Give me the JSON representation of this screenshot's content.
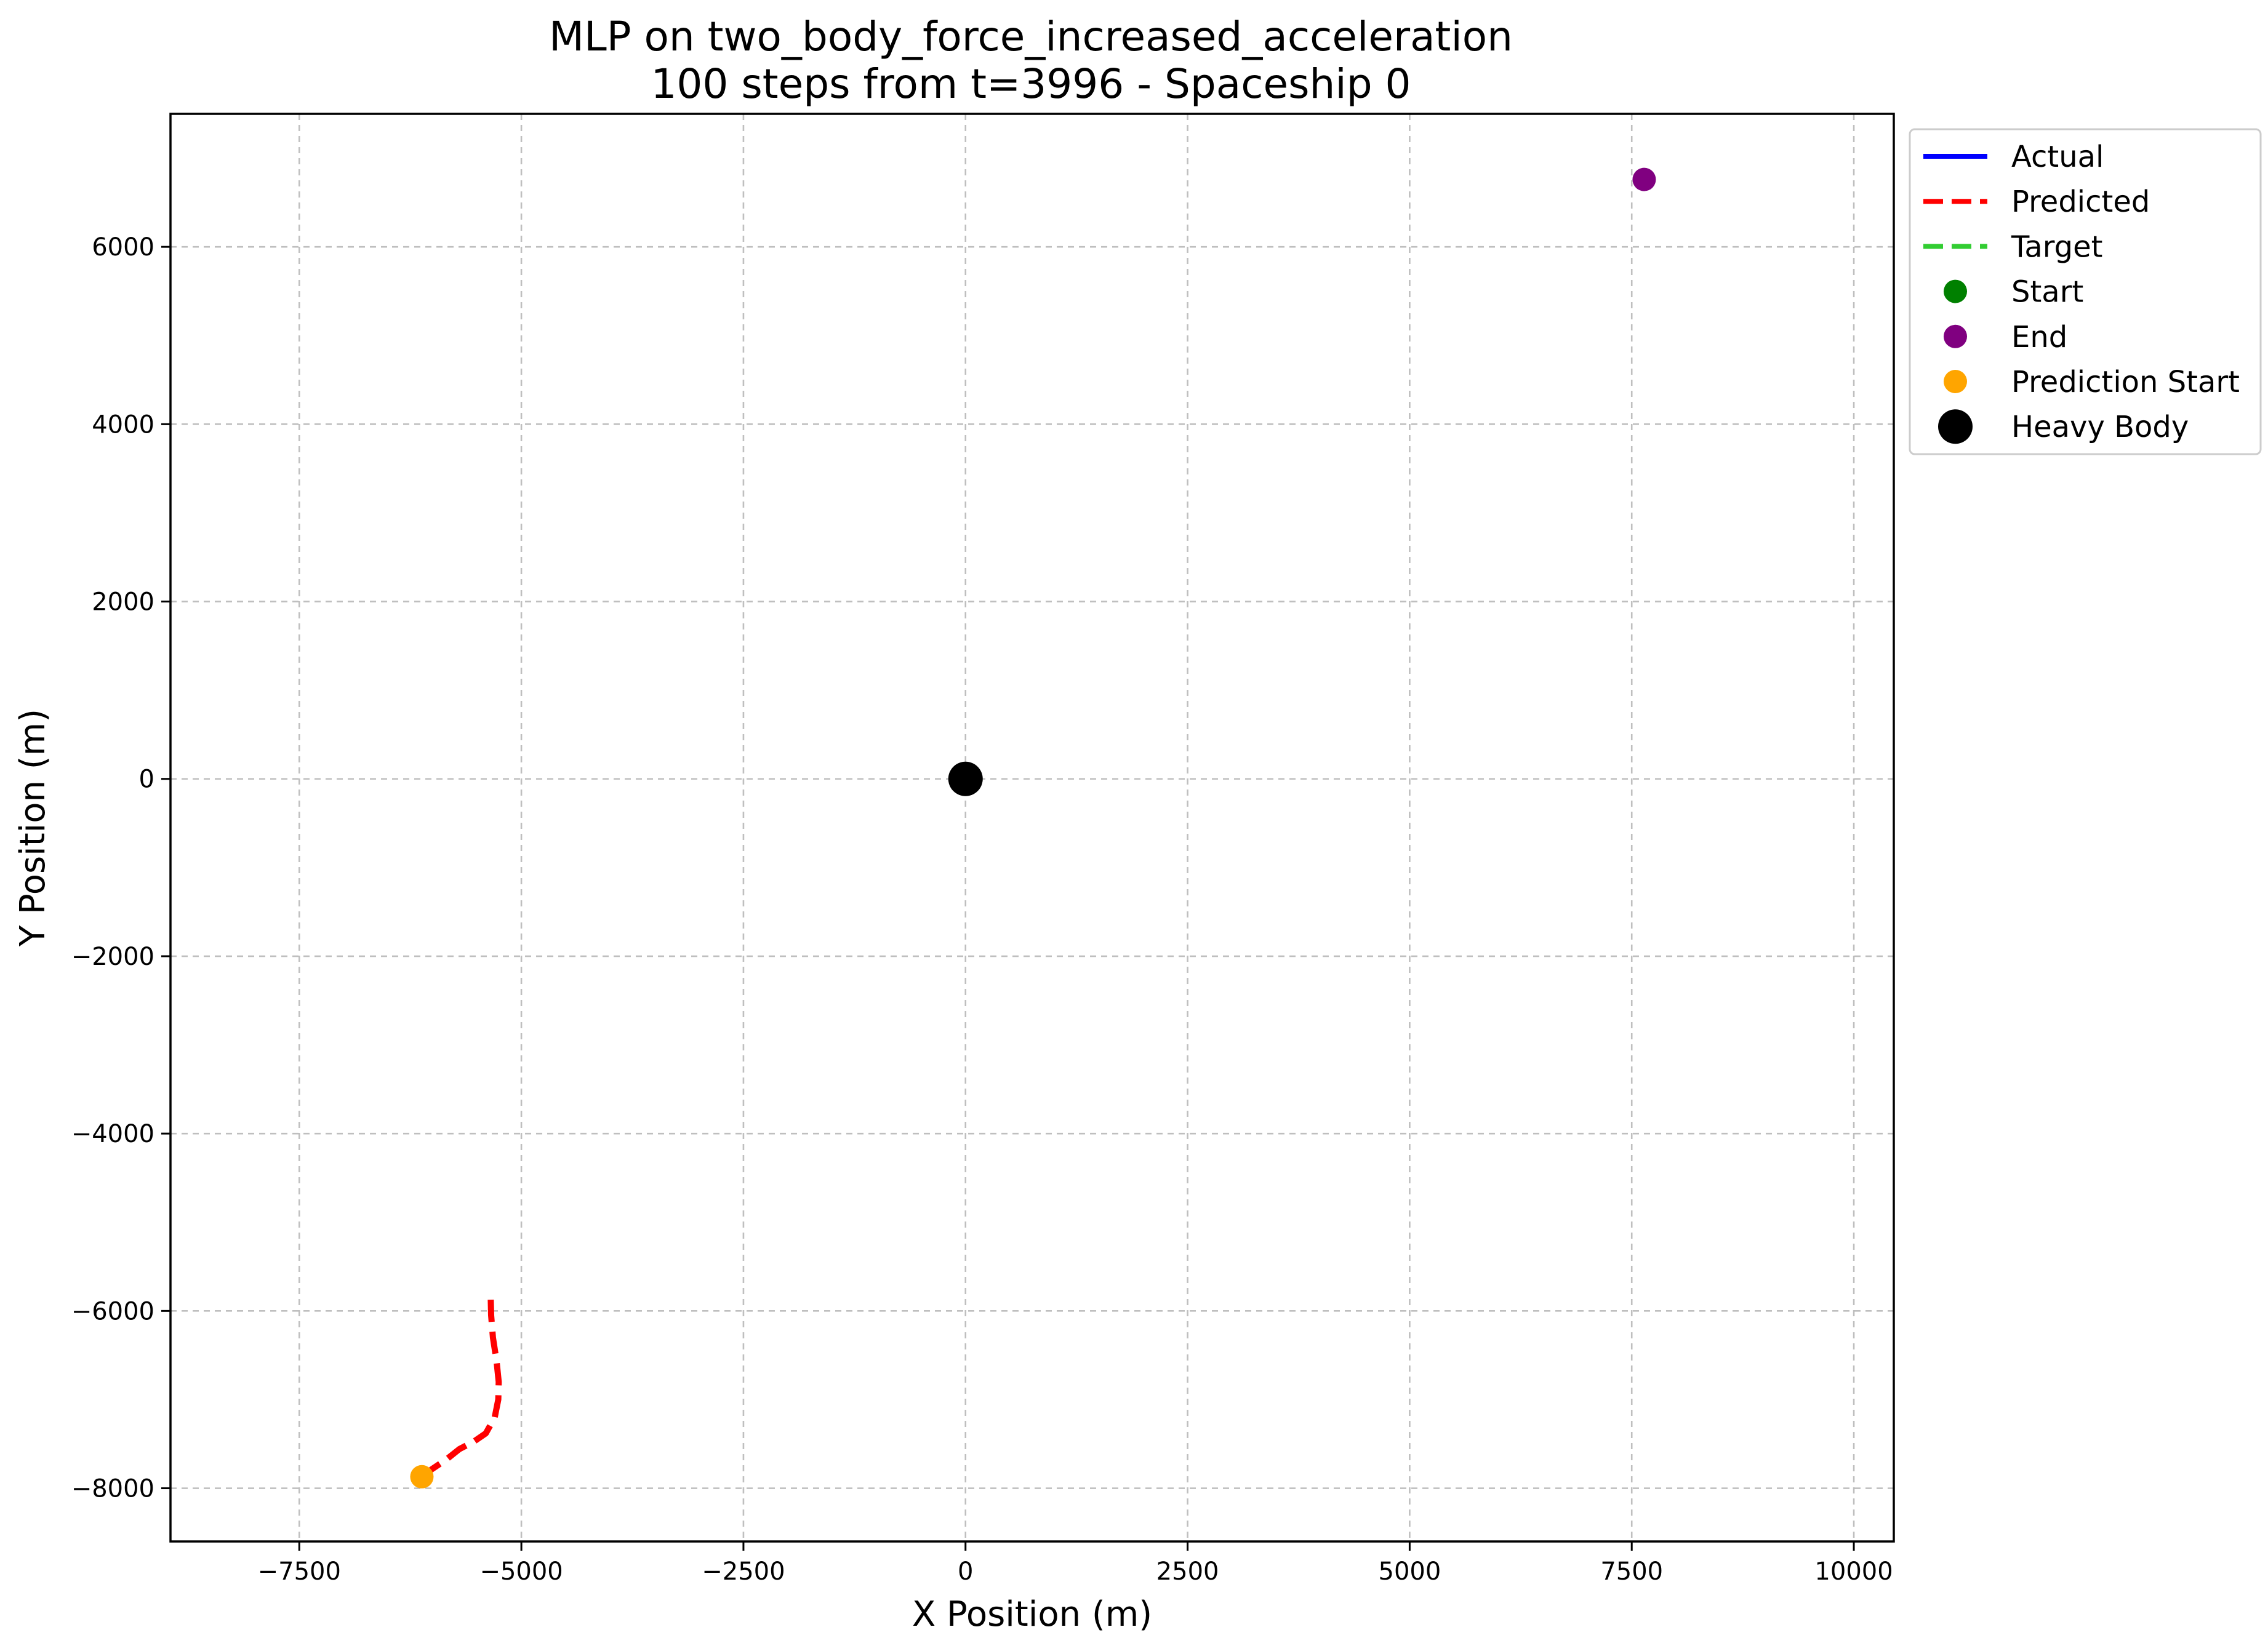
{
  "chart_data": {
    "type": "line",
    "title_line1": "MLP on two_body_force_increased_acceleration",
    "title_line2": "100 steps from t=3996 - Spaceship 0",
    "xlabel": "X Position (m)",
    "ylabel": "Y Position (m)",
    "xlim": [
      -8950,
      10450
    ],
    "ylim": [
      -8600,
      7500
    ],
    "x_ticks": [
      -7500,
      -5000,
      -2500,
      0,
      2500,
      5000,
      7500,
      10000
    ],
    "x_tick_labels": [
      "−7500",
      "−5000",
      "−2500",
      "0",
      "2500",
      "5000",
      "7500",
      "10000"
    ],
    "y_ticks": [
      -8000,
      -6000,
      -4000,
      -2000,
      0,
      2000,
      4000,
      6000
    ],
    "y_tick_labels": [
      "−8000",
      "−6000",
      "−4000",
      "−2000",
      "0",
      "2000",
      "4000",
      "6000"
    ],
    "grid": true,
    "legend_position": "outside upper right",
    "legend": [
      {
        "label": "Actual",
        "kind": "line",
        "color": "#0000ff",
        "dashed": false
      },
      {
        "label": "Predicted",
        "kind": "line",
        "color": "#ff0000",
        "dashed": true
      },
      {
        "label": "Target",
        "kind": "line",
        "color": "#32cd32",
        "dashed": true
      },
      {
        "label": "Start",
        "kind": "marker",
        "color": "#008000",
        "size": "medium"
      },
      {
        "label": "End",
        "kind": "marker",
        "color": "#800080",
        "size": "medium"
      },
      {
        "label": "Prediction Start",
        "kind": "marker",
        "color": "#ffa500",
        "size": "medium"
      },
      {
        "label": "Heavy Body",
        "kind": "marker",
        "color": "#000000",
        "size": "large"
      }
    ],
    "series": [
      {
        "name": "Predicted",
        "color": "#ff0000",
        "dashed": true,
        "x": [
          -6120,
          -6000,
          -5850,
          -5700,
          -5530,
          -5400,
          -5300,
          -5260,
          -5255,
          -5280,
          -5320,
          -5340,
          -5345
        ],
        "y": [
          -7870,
          -7780,
          -7680,
          -7560,
          -7470,
          -7380,
          -7200,
          -7000,
          -6800,
          -6560,
          -6300,
          -6050,
          -5850
        ]
      }
    ],
    "points": [
      {
        "name": "Prediction Start",
        "x": -6120,
        "y": -7870,
        "color": "#ffa500",
        "size": "medium"
      },
      {
        "name": "End",
        "x": 7640,
        "y": 6760,
        "color": "#800080",
        "size": "medium"
      },
      {
        "name": "Heavy Body",
        "x": 0,
        "y": 0,
        "color": "#000000",
        "size": "large"
      }
    ]
  }
}
